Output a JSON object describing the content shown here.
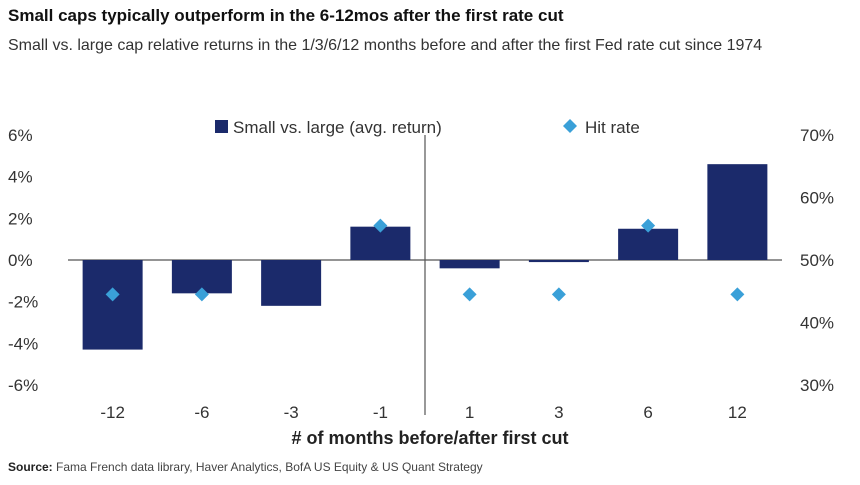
{
  "title": "Small caps typically outperform in the 6-12mos after the first rate cut",
  "subtitle": "Small vs. large cap relative returns in the 1/3/6/12 months before and after the first Fed rate cut since 1974",
  "source_label": "Source:",
  "source_text": "Fama French data library, Haver Analytics, BofA US Equity & US Quant Strategy",
  "colors": {
    "bar": "#1b2a6b",
    "hit": "#3aa0d8",
    "axis": "#555555"
  },
  "chart_data": {
    "type": "bar",
    "categories": [
      "-12",
      "-6",
      "-3",
      "-1",
      "1",
      "3",
      "6",
      "12"
    ],
    "xlabel": "# of months before/after first cut",
    "legend_placement": "top",
    "grid": false,
    "series": [
      {
        "name": "Small vs. large (avg. return)",
        "type": "bar",
        "axis": "left",
        "values": [
          -4.3,
          -1.6,
          -2.2,
          1.6,
          -0.4,
          -0.1,
          1.5,
          4.6
        ]
      },
      {
        "name": "Hit rate",
        "type": "scatter",
        "axis": "right",
        "values": [
          44.5,
          44.5,
          null,
          55.5,
          44.5,
          44.5,
          55.5,
          44.5
        ]
      }
    ],
    "y_left": {
      "min": -6,
      "max": 6,
      "ticks": [
        "6%",
        "4%",
        "2%",
        "0%",
        "-2%",
        "-4%",
        "-6%"
      ],
      "tick_values": [
        6,
        4,
        2,
        0,
        -2,
        -4,
        -6
      ]
    },
    "y_right": {
      "min": 30,
      "max": 70,
      "ticks": [
        "70%",
        "60%",
        "50%",
        "40%",
        "30%"
      ],
      "tick_values": [
        70,
        60,
        50,
        40,
        30
      ]
    }
  }
}
